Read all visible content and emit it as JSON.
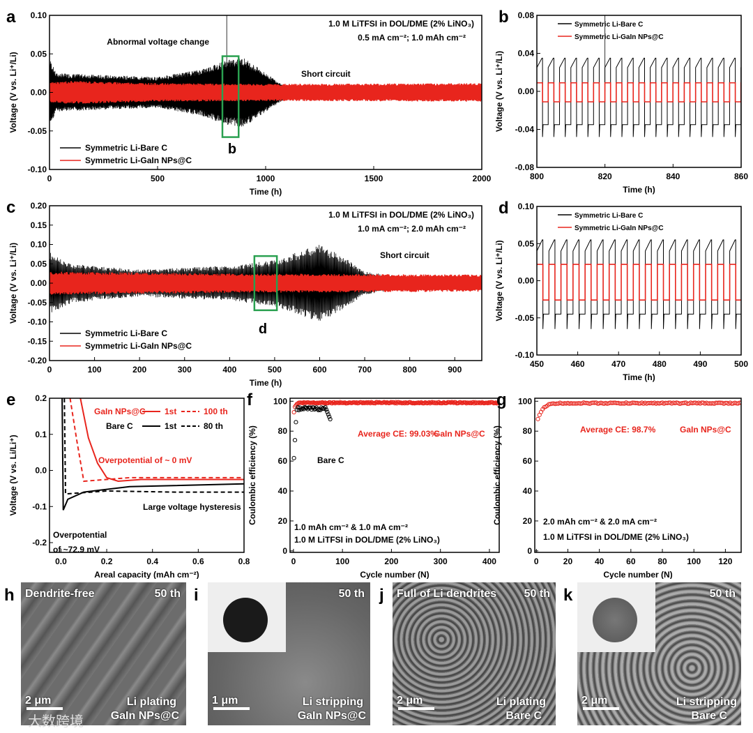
{
  "colors": {
    "bare": "#000000",
    "gain": "#e8251d",
    "box": "#2aa050"
  },
  "legend": {
    "bare": "Symmetric Li-Bare C",
    "gain": "Symmetric Li-GaIn NPs@C"
  },
  "chart_data": [
    {
      "id": "a",
      "type": "line",
      "letter": "a",
      "xlabel": "Time (h)",
      "ylabel": "Voltage (V vs. Li⁺/Li)",
      "xlim": [
        0,
        2000
      ],
      "ylim": [
        -0.1,
        0.1
      ],
      "xticks": [
        "0",
        "500",
        "1000",
        "1500",
        "2000"
      ],
      "xtickvals": [
        0,
        500,
        1000,
        1500,
        2000
      ],
      "yticks": [
        "-0.10",
        "-0.05",
        "0.00",
        "0.05",
        "0.10"
      ],
      "ytickvals": [
        -0.1,
        -0.05,
        0,
        0.05,
        0.1
      ],
      "annotations": [
        "1.0 M LiTFSI in DOL/DME (2% LiNO₃)",
        "0.5 mA cm⁻²; 1.0 mAh cm⁻²",
        "Abnormal voltage change",
        "Short circuit",
        "b"
      ],
      "series": [
        {
          "name": "Symmetric Li-Bare C",
          "kind": "envelope",
          "env": [
            [
              0,
              0.045
            ],
            [
              30,
              0.025
            ],
            [
              300,
              0.022
            ],
            [
              500,
              0.02
            ],
            [
              700,
              0.03
            ],
            [
              820,
              0.042
            ],
            [
              900,
              0.045
            ],
            [
              1000,
              0.025
            ],
            [
              1080,
              0.01
            ]
          ],
          "spike": [
            820,
            0.1
          ]
        },
        {
          "name": "Symmetric Li-GaIn NPs@C",
          "kind": "envelope",
          "env": [
            [
              0,
              0.013
            ],
            [
              100,
              0.015
            ],
            [
              500,
              0.012
            ],
            [
              1000,
              0.011
            ],
            [
              2000,
              0.012
            ]
          ]
        }
      ],
      "highlight": [
        800,
        875,
        -0.058,
        0.047
      ]
    },
    {
      "id": "b",
      "type": "line",
      "letter": "b",
      "xlabel": "Time (h)",
      "ylabel": "Voltage (V vs. Li⁺/Li)",
      "xlim": [
        800,
        860
      ],
      "ylim": [
        -0.08,
        0.08
      ],
      "xticks": [
        "800",
        "820",
        "840",
        "860"
      ],
      "xtickvals": [
        800,
        820,
        840,
        860
      ],
      "yticks": [
        "-0.08",
        "-0.04",
        "0.00",
        "0.04",
        "0.08"
      ],
      "ytickvals": [
        -0.08,
        -0.04,
        0,
        0.04,
        0.08
      ],
      "series": [
        {
          "name": "Symmetric Li-Bare C",
          "kind": "square",
          "period": 3.33,
          "hi": 0.025,
          "lo": -0.035,
          "peak": 0.035,
          "trough": -0.048,
          "spike": [
            820,
            0.08
          ]
        },
        {
          "name": "Symmetric Li-GaIn NPs@C",
          "kind": "square",
          "period": 3.33,
          "hi": 0.009,
          "lo": -0.011,
          "peak": 0.009,
          "trough": -0.011
        }
      ]
    },
    {
      "id": "c",
      "type": "line",
      "letter": "c",
      "xlabel": "Time (h)",
      "ylabel": "Voltage (V vs. Li⁺/Li)",
      "xlim": [
        0,
        960
      ],
      "ylim": [
        -0.2,
        0.2
      ],
      "xticks": [
        "0",
        "100",
        "200",
        "300",
        "400",
        "500",
        "600",
        "700",
        "800",
        "900"
      ],
      "xtickvals": [
        0,
        100,
        200,
        300,
        400,
        500,
        600,
        700,
        800,
        900
      ],
      "yticks": [
        "-0.20",
        "-0.15",
        "-0.10",
        "-0.05",
        "0.00",
        "0.05",
        "0.10",
        "0.15",
        "0.20"
      ],
      "ytickvals": [
        -0.2,
        -0.15,
        -0.1,
        -0.05,
        0,
        0.05,
        0.1,
        0.15,
        0.2
      ],
      "annotations": [
        "1.0 M LiTFSI in DOL/DME (2% LiNO₃)",
        "1.0 mA cm⁻²; 2.0 mAh cm⁻²",
        "Short circuit",
        "d"
      ],
      "series": [
        {
          "name": "Symmetric Li-Bare C",
          "kind": "envelope",
          "env": [
            [
              0,
              0.08
            ],
            [
              50,
              0.05
            ],
            [
              200,
              0.035
            ],
            [
              400,
              0.045
            ],
            [
              500,
              0.06
            ],
            [
              600,
              0.1
            ],
            [
              650,
              0.07
            ],
            [
              700,
              0.03
            ],
            [
              760,
              0.02
            ]
          ]
        },
        {
          "name": "Symmetric Li-GaIn NPs@C",
          "kind": "envelope",
          "env": [
            [
              0,
              0.03
            ],
            [
              400,
              0.025
            ],
            [
              960,
              0.022
            ]
          ]
        }
      ],
      "highlight": [
        455,
        505,
        -0.07,
        0.07
      ]
    },
    {
      "id": "d",
      "type": "line",
      "letter": "d",
      "xlabel": "Time (h)",
      "ylabel": "Voltage (V vs. Li⁺/Li)",
      "xlim": [
        450,
        500
      ],
      "ylim": [
        -0.1,
        0.1
      ],
      "xticks": [
        "450",
        "460",
        "470",
        "480",
        "490",
        "500"
      ],
      "xtickvals": [
        450,
        460,
        470,
        480,
        490,
        500
      ],
      "yticks": [
        "-0.10",
        "-0.05",
        "0.00",
        "0.05",
        "0.10"
      ],
      "ytickvals": [
        -0.1,
        -0.05,
        0,
        0.05,
        0.1
      ],
      "series": [
        {
          "name": "Symmetric Li-Bare C",
          "kind": "square",
          "period": 2.95,
          "hi": 0.04,
          "lo": -0.045,
          "peak": 0.055,
          "trough": -0.065
        },
        {
          "name": "Symmetric Li-GaIn NPs@C",
          "kind": "square",
          "period": 2.95,
          "hi": 0.022,
          "lo": -0.026,
          "peak": 0.022,
          "trough": -0.026
        }
      ]
    },
    {
      "id": "e",
      "type": "line",
      "letter": "e",
      "xlabel": "Areal capacity (mAh cm⁻²)",
      "ylabel": "Voltage (V vs. Li/Li⁺)",
      "xlim": [
        -0.05,
        0.8
      ],
      "ylim": [
        -0.227,
        0.2
      ],
      "xticks": [
        "0.0",
        "0.2",
        "0.4",
        "0.6",
        "0.8"
      ],
      "xtickvals": [
        0,
        0.2,
        0.4,
        0.6,
        0.8
      ],
      "yticks": [
        "-0.2",
        "-0.1",
        "0.0",
        "0.1",
        "0.2"
      ],
      "ytickvals": [
        -0.2,
        -0.1,
        0,
        0.1,
        0.2
      ],
      "annotations": [
        "GaIn NPs@C",
        "1st",
        "100 th",
        "Bare C",
        "1st",
        "80 th",
        "Overpotential of ~ 0 mV",
        "Large voltage hysteresis",
        "Overpotential",
        "of ~72.9 mV"
      ],
      "series": [
        {
          "name": "GaIn NPs@C 1st",
          "dash": false,
          "color": "gain",
          "points": [
            [
              0.085,
              0.2
            ],
            [
              0.12,
              0.09
            ],
            [
              0.16,
              0.02
            ],
            [
              0.2,
              -0.02
            ],
            [
              0.25,
              -0.03
            ],
            [
              0.35,
              -0.025
            ],
            [
              0.8,
              -0.025
            ]
          ]
        },
        {
          "name": "GaIn NPs@C 100 th",
          "dash": true,
          "color": "gain",
          "points": [
            [
              0.04,
              0.2
            ],
            [
              0.07,
              0.08
            ],
            [
              0.1,
              -0.03
            ],
            [
              0.3,
              -0.02
            ],
            [
              0.8,
              -0.02
            ]
          ]
        },
        {
          "name": "Bare C 1st",
          "dash": false,
          "color": "bare",
          "points": [
            [
              0.005,
              0.2
            ],
            [
              0.01,
              -0.11
            ],
            [
              0.03,
              -0.08
            ],
            [
              0.1,
              -0.06
            ],
            [
              0.3,
              -0.045
            ],
            [
              0.8,
              -0.037
            ]
          ]
        },
        {
          "name": "Bare C 80 th",
          "dash": true,
          "color": "bare",
          "points": [
            [
              0.015,
              0.2
            ],
            [
              0.02,
              -0.065
            ],
            [
              0.2,
              -0.057
            ],
            [
              0.5,
              -0.06
            ],
            [
              0.8,
              -0.06
            ]
          ]
        }
      ]
    },
    {
      "id": "f",
      "type": "scatter",
      "letter": "f",
      "xlabel": "Cycle number (N)",
      "ylabel": "Coulombic efficiency (%)",
      "xlim": [
        -7,
        420
      ],
      "ylim": [
        -1,
        102
      ],
      "xticks": [
        "0",
        "100",
        "200",
        "300",
        "400"
      ],
      "xtickvals": [
        0,
        100,
        200,
        300,
        400
      ],
      "yticks": [
        "0",
        "20",
        "40",
        "60",
        "80",
        "100"
      ],
      "ytickvals": [
        0,
        20,
        40,
        60,
        80,
        100
      ],
      "annotations": [
        "Average CE: 99.03%",
        "GaIn NPs@C",
        "Bare C",
        "1.0 mAh cm⁻² & 1.0 mA cm⁻²",
        "1.0 M LiTFSI in DOL/DME (2% LiNO₃)"
      ],
      "series": [
        {
          "name": "GaIn NPs@C",
          "color": "gain",
          "range": [
            1,
            420
          ],
          "start": 93,
          "plateau": 99.0
        },
        {
          "name": "Bare C",
          "color": "bare",
          "range": [
            1,
            75
          ],
          "start": 62,
          "plateau": 96,
          "end": 88
        }
      ]
    },
    {
      "id": "g",
      "type": "scatter",
      "letter": "g",
      "xlabel": "Cycle number (N)",
      "ylabel": "Coulombic efficiency (%)",
      "xlim": [
        -1,
        130
      ],
      "ylim": [
        -1,
        102
      ],
      "xticks": [
        "0",
        "20",
        "40",
        "60",
        "80",
        "100",
        "120"
      ],
      "xtickvals": [
        0,
        20,
        40,
        60,
        80,
        100,
        120
      ],
      "yticks": [
        "0",
        "20",
        "40",
        "60",
        "80",
        "100"
      ],
      "ytickvals": [
        0,
        20,
        40,
        60,
        80,
        100
      ],
      "annotations": [
        "Average CE: 98.7%",
        "GaIn NPs@C",
        "2.0 mAh cm⁻² & 2.0 mA cm⁻²",
        "1.0 M LiTFSI in DOL/DME (2% LiNO₃)"
      ],
      "series": [
        {
          "name": "GaIn NPs@C",
          "color": "gain",
          "range": [
            1,
            130
          ],
          "start": 88,
          "plateau": 98.7
        }
      ]
    }
  ],
  "images": [
    {
      "letter": "h",
      "top_left": "Dendrite-free",
      "top_right": "50 th",
      "scale": "2 μm",
      "caption1": "Li plating",
      "caption2": "GaIn NPs@C"
    },
    {
      "letter": "i",
      "top_right": "50 th",
      "scale": "1 μm",
      "caption1": "Li stripping",
      "caption2": "GaIn NPs@C"
    },
    {
      "letter": "j",
      "top_left": "Full of Li dendrites",
      "top_right": "50 th",
      "scale": "2 μm",
      "caption1": "Li plating",
      "caption2": "Bare C"
    },
    {
      "letter": "k",
      "top_right": "50 th",
      "scale": "2 μm",
      "caption1": "Li stripping",
      "caption2": "Bare C"
    }
  ],
  "watermark": "大数跨境"
}
